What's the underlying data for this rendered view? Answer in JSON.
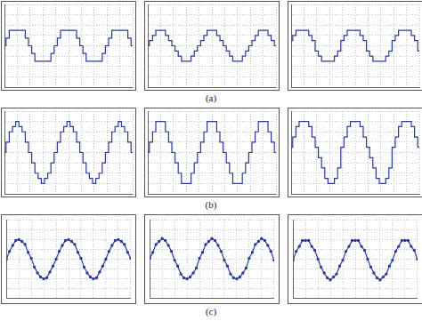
{
  "captions": [
    "(a)",
    "(b)",
    "(c)"
  ],
  "chart_data": [
    {
      "type": "line",
      "color": "#2a3b9c",
      "line_style": "stepped",
      "marker": "none",
      "grid": true,
      "tick_labels": false,
      "xlim": [
        0,
        10
      ],
      "xticks": [
        0,
        1,
        2,
        3,
        4,
        5,
        6,
        7,
        8,
        9,
        10
      ],
      "ylim": [
        -4,
        4
      ],
      "yticks": [
        -4,
        -3,
        -2,
        -1,
        0,
        1,
        2,
        3,
        4
      ],
      "x": [
        0,
        0.25,
        0.5,
        0.75,
        1,
        1.25,
        1.5,
        1.75,
        2,
        2.25,
        2.5,
        2.75,
        3,
        3.25,
        3.5,
        3.75,
        4,
        4.25,
        4.5,
        4.75,
        5,
        5.25,
        5.5,
        5.75,
        6,
        6.25,
        6.5,
        6.75,
        7,
        7.25,
        7.5,
        7.75,
        8,
        8.25,
        8.5,
        8.75,
        9,
        9.25,
        9.5,
        9.75,
        10
      ],
      "values": [
        0,
        0.75,
        1.5,
        1.5,
        1.5,
        1.5,
        1.5,
        0.75,
        0,
        -0.75,
        -1.5,
        -1.5,
        -1.5,
        -1.5,
        -1.5,
        -0.75,
        0,
        0.75,
        1.5,
        1.5,
        1.5,
        1.5,
        1.5,
        0.75,
        0,
        -0.75,
        -1.5,
        -1.5,
        -1.5,
        -1.5,
        -1.5,
        -0.75,
        0,
        0.75,
        1.5,
        1.5,
        1.5,
        1.5,
        1.5,
        0.75,
        0
      ]
    },
    {
      "type": "line",
      "color": "#2a3b9c",
      "line_style": "stepped",
      "marker": "none",
      "grid": true,
      "tick_labels": false,
      "xlim": [
        0,
        10
      ],
      "xticks": [
        0,
        1,
        2,
        3,
        4,
        5,
        6,
        7,
        8,
        9,
        10
      ],
      "ylim": [
        -4,
        4
      ],
      "yticks": [
        -4,
        -3,
        -2,
        -1,
        0,
        1,
        2,
        3,
        4
      ],
      "x": [
        0,
        0.25,
        0.5,
        0.75,
        1,
        1.25,
        1.5,
        1.75,
        2,
        2.25,
        2.5,
        2.75,
        3,
        3.25,
        3.5,
        3.75,
        4,
        4.25,
        4.5,
        4.75,
        5,
        5.25,
        5.5,
        5.75,
        6,
        6.25,
        6.5,
        6.75,
        7,
        7.25,
        7.5,
        7.75,
        8,
        8.25,
        8.5,
        8.75,
        9,
        9.25,
        9.5,
        9.75,
        10
      ],
      "values": [
        0,
        0.5,
        1,
        1.5,
        1.5,
        1.5,
        1,
        0.5,
        0,
        -0.5,
        -1,
        -1.5,
        -1.5,
        -1.5,
        -1,
        -0.5,
        0,
        0.5,
        1,
        1.5,
        1.5,
        1.5,
        1,
        0.5,
        0,
        -0.5,
        -1,
        -1.5,
        -1.5,
        -1.5,
        -1,
        -0.5,
        0,
        0.5,
        1,
        1.5,
        1.5,
        1.5,
        1,
        0.5,
        0
      ]
    },
    {
      "type": "line",
      "color": "#2a3b9c",
      "line_style": "stepped",
      "marker": "none",
      "grid": true,
      "tick_labels": false,
      "xlim": [
        0,
        10
      ],
      "xticks": [
        0,
        1,
        2,
        3,
        4,
        5,
        6,
        7,
        8,
        9,
        10
      ],
      "ylim": [
        -4,
        4
      ],
      "yticks": [
        -4,
        -3,
        -2,
        -1,
        0,
        1,
        2,
        3,
        4
      ],
      "x": [
        0,
        0.25,
        0.5,
        0.75,
        1,
        1.25,
        1.5,
        1.75,
        2,
        2.25,
        2.5,
        2.75,
        3,
        3.25,
        3.5,
        3.75,
        4,
        4.25,
        4.5,
        4.75,
        5,
        5.25,
        5.5,
        5.75,
        6,
        6.25,
        6.5,
        6.75,
        7,
        7.25,
        7.5,
        7.75,
        8,
        8.25,
        8.5,
        8.75,
        9,
        9.25,
        9.5,
        9.75,
        10
      ],
      "values": [
        0.5,
        1,
        1.5,
        1.5,
        1.5,
        1.5,
        1,
        0.5,
        -0.5,
        -1,
        -1.5,
        -1.5,
        -1.5,
        -1.5,
        -1,
        -0.5,
        0.5,
        1,
        1.5,
        1.5,
        1.5,
        1.5,
        1,
        0.5,
        -0.5,
        -1,
        -1.5,
        -1.5,
        -1.5,
        -1.5,
        -1,
        -0.5,
        0.5,
        1,
        1.5,
        1.5,
        1.5,
        1.5,
        1,
        0.5,
        -0.5
      ]
    },
    {
      "type": "line",
      "color": "#2a3b9c",
      "line_style": "stepped",
      "marker": "none",
      "grid": true,
      "tick_labels": false,
      "xlim": [
        0,
        10
      ],
      "xticks": [
        0,
        1,
        2,
        3,
        4,
        5,
        6,
        7,
        8,
        9,
        10
      ],
      "ylim": [
        -4,
        4
      ],
      "yticks": [
        -4,
        -3,
        -2,
        -1,
        0,
        1,
        2,
        3,
        4
      ],
      "x": [
        0,
        0.25,
        0.5,
        0.75,
        1,
        1.25,
        1.5,
        1.75,
        2,
        2.25,
        2.5,
        2.75,
        3,
        3.25,
        3.5,
        3.75,
        4,
        4.25,
        4.5,
        4.75,
        5,
        5.25,
        5.5,
        5.75,
        6,
        6.25,
        6.5,
        6.75,
        7,
        7.25,
        7.5,
        7.75,
        8,
        8.25,
        8.5,
        8.75,
        9,
        9.25,
        9.5,
        9.75,
        10
      ],
      "values": [
        0,
        1,
        2,
        2.5,
        3,
        2.5,
        2,
        1,
        0,
        -1,
        -2,
        -2.5,
        -3,
        -2.5,
        -2,
        -1,
        0,
        1,
        2,
        2.5,
        3,
        2.5,
        2,
        1,
        0,
        -1,
        -2,
        -2.5,
        -3,
        -2.5,
        -2,
        -1,
        0,
        1,
        2,
        2.5,
        3,
        2.5,
        2,
        1,
        0
      ]
    },
    {
      "type": "line",
      "color": "#2a3b9c",
      "line_style": "stepped",
      "marker": "none",
      "grid": true,
      "tick_labels": false,
      "xlim": [
        0,
        10
      ],
      "xticks": [
        0,
        1,
        2,
        3,
        4,
        5,
        6,
        7,
        8,
        9,
        10
      ],
      "ylim": [
        -4,
        4
      ],
      "yticks": [
        -4,
        -3,
        -2,
        -1,
        0,
        1,
        2,
        3,
        4
      ],
      "x": [
        0,
        0.25,
        0.5,
        0.75,
        1,
        1.25,
        1.5,
        1.75,
        2,
        2.25,
        2.5,
        2.75,
        3,
        3.25,
        3.5,
        3.75,
        4,
        4.25,
        4.5,
        4.75,
        5,
        5.25,
        5.5,
        5.75,
        6,
        6.25,
        6.5,
        6.75,
        7,
        7.25,
        7.5,
        7.75,
        8,
        8.25,
        8.5,
        8.75,
        9,
        9.25,
        9.5,
        9.75,
        10
      ],
      "values": [
        0,
        1,
        2,
        3,
        3,
        3,
        2,
        1,
        0,
        -1,
        -2,
        -3,
        -3,
        -3,
        -2,
        -1,
        0,
        1,
        2,
        3,
        3,
        3,
        2,
        1,
        0,
        -1,
        -2,
        -3,
        -3,
        -3,
        -2,
        -1,
        0,
        1,
        2,
        3,
        3,
        3,
        2,
        1,
        0
      ]
    },
    {
      "type": "line",
      "color": "#2a3b9c",
      "line_style": "stepped",
      "marker": "none",
      "grid": true,
      "tick_labels": false,
      "xlim": [
        0,
        10
      ],
      "xticks": [
        0,
        1,
        2,
        3,
        4,
        5,
        6,
        7,
        8,
        9,
        10
      ],
      "ylim": [
        -4,
        4
      ],
      "yticks": [
        -4,
        -3,
        -2,
        -1,
        0,
        1,
        2,
        3,
        4
      ],
      "x": [
        0,
        0.25,
        0.5,
        0.75,
        1,
        1.25,
        1.5,
        1.75,
        2,
        2.25,
        2.5,
        2.75,
        3,
        3.25,
        3.5,
        3.75,
        4,
        4.25,
        4.5,
        4.75,
        5,
        5.25,
        5.5,
        5.75,
        6,
        6.25,
        6.5,
        6.75,
        7,
        7.25,
        7.5,
        7.75,
        8,
        8.25,
        8.5,
        8.75,
        9,
        9.25,
        9.5,
        9.75,
        10
      ],
      "values": [
        0.5,
        1.5,
        2.5,
        3,
        3,
        3,
        2.5,
        1.5,
        0.5,
        -0.5,
        -1.5,
        -2.5,
        -3,
        -3,
        -2.5,
        -1.5,
        0.5,
        1.5,
        2.5,
        3,
        3,
        3,
        2.5,
        1.5,
        0.5,
        -0.5,
        -1.5,
        -2.5,
        -3,
        -3,
        -2.5,
        -1.5,
        0.5,
        1.5,
        2.5,
        3,
        3,
        3,
        2.5,
        1.5,
        0.5
      ]
    },
    {
      "type": "line",
      "color": "#2a3b9c",
      "line_style": "solid",
      "marker": "circle",
      "grid": true,
      "tick_labels": false,
      "xlim": [
        0,
        10
      ],
      "xticks": [
        0,
        1,
        2,
        3,
        4,
        5,
        6,
        7,
        8,
        9,
        10
      ],
      "ylim": [
        -4,
        4
      ],
      "yticks": [
        -4,
        -3,
        -2,
        -1,
        0,
        1,
        2,
        3,
        4
      ],
      "x": [
        0,
        0.25,
        0.5,
        0.75,
        1,
        1.25,
        1.5,
        1.75,
        2,
        2.25,
        2.5,
        2.75,
        3,
        3.25,
        3.5,
        3.75,
        4,
        4.25,
        4.5,
        4.75,
        5,
        5.25,
        5.5,
        5.75,
        6,
        6.25,
        6.5,
        6.75,
        7,
        7.25,
        7.5,
        7.75,
        8,
        8.25,
        8.5,
        8.75,
        9,
        9.25,
        9.5,
        9.75,
        10
      ],
      "values": [
        0,
        0.8,
        1.4,
        1.9,
        2,
        1.8,
        1.5,
        0.7,
        0.1,
        -0.8,
        -1.4,
        -1.8,
        -2,
        -1.9,
        -1.3,
        -0.7,
        0,
        0.8,
        1.4,
        1.9,
        2,
        1.8,
        1.5,
        0.7,
        0.1,
        -0.8,
        -1.4,
        -1.8,
        -2,
        -1.9,
        -1.3,
        -0.7,
        0,
        0.8,
        1.4,
        1.9,
        2,
        1.8,
        1.5,
        0.7,
        0.1
      ]
    },
    {
      "type": "line",
      "color": "#2a3b9c",
      "line_style": "solid",
      "marker": "circle",
      "grid": true,
      "tick_labels": false,
      "xlim": [
        0,
        10
      ],
      "xticks": [
        0,
        1,
        2,
        3,
        4,
        5,
        6,
        7,
        8,
        9,
        10
      ],
      "ylim": [
        -4,
        4
      ],
      "yticks": [
        -4,
        -3,
        -2,
        -1,
        0,
        1,
        2,
        3,
        4
      ],
      "x": [
        0,
        0.25,
        0.5,
        0.75,
        1,
        1.25,
        1.5,
        1.75,
        2,
        2.25,
        2.5,
        2.75,
        3,
        3.25,
        3.5,
        3.75,
        4,
        4.25,
        4.5,
        4.75,
        5,
        5.25,
        5.5,
        5.75,
        6,
        6.25,
        6.5,
        6.75,
        7,
        7.25,
        7.5,
        7.75,
        8,
        8.25,
        8.5,
        8.75,
        9,
        9.25,
        9.5,
        9.75,
        10
      ],
      "values": [
        0.1,
        0.7,
        1.5,
        1.8,
        2.1,
        1.9,
        1.4,
        0.8,
        -0.1,
        -0.7,
        -1.5,
        -1.9,
        -2,
        -1.8,
        -1.4,
        -0.9,
        0.1,
        0.7,
        1.5,
        1.8,
        2.1,
        1.9,
        1.4,
        0.8,
        -0.1,
        -0.7,
        -1.5,
        -1.9,
        -2,
        -1.8,
        -1.4,
        -0.9,
        0.1,
        0.7,
        1.5,
        1.8,
        2.1,
        1.9,
        1.4,
        0.8,
        -0.1
      ]
    },
    {
      "type": "line",
      "color": "#2a3b9c",
      "line_style": "solid",
      "marker": "circle",
      "grid": true,
      "tick_labels": false,
      "xlim": [
        0,
        10
      ],
      "xticks": [
        0,
        1,
        2,
        3,
        4,
        5,
        6,
        7,
        8,
        9,
        10
      ],
      "ylim": [
        -4,
        4
      ],
      "yticks": [
        -4,
        -3,
        -2,
        -1,
        0,
        1,
        2,
        3,
        4
      ],
      "x": [
        0,
        0.25,
        0.5,
        0.75,
        1,
        1.25,
        1.5,
        1.75,
        2,
        2.25,
        2.5,
        2.75,
        3,
        3.25,
        3.5,
        3.75,
        4,
        4.25,
        4.5,
        4.75,
        5,
        5.25,
        5.5,
        5.75,
        6,
        6.25,
        6.5,
        6.75,
        7,
        7.25,
        7.5,
        7.75,
        8,
        8.25,
        8.5,
        8.75,
        9,
        9.25,
        9.5,
        9.75,
        10
      ],
      "values": [
        -0.1,
        0.8,
        1.3,
        1.9,
        1.9,
        1.9,
        1.3,
        0.9,
        0,
        -0.8,
        -1.4,
        -1.9,
        -2.1,
        -1.8,
        -1.5,
        -0.7,
        -0.1,
        0.8,
        1.3,
        1.9,
        1.9,
        1.9,
        1.3,
        0.9,
        0,
        -0.8,
        -1.4,
        -1.9,
        -2.1,
        -1.8,
        -1.5,
        -0.7,
        -0.1,
        0.8,
        1.3,
        1.9,
        1.9,
        1.9,
        1.3,
        0.9,
        0
      ]
    }
  ]
}
